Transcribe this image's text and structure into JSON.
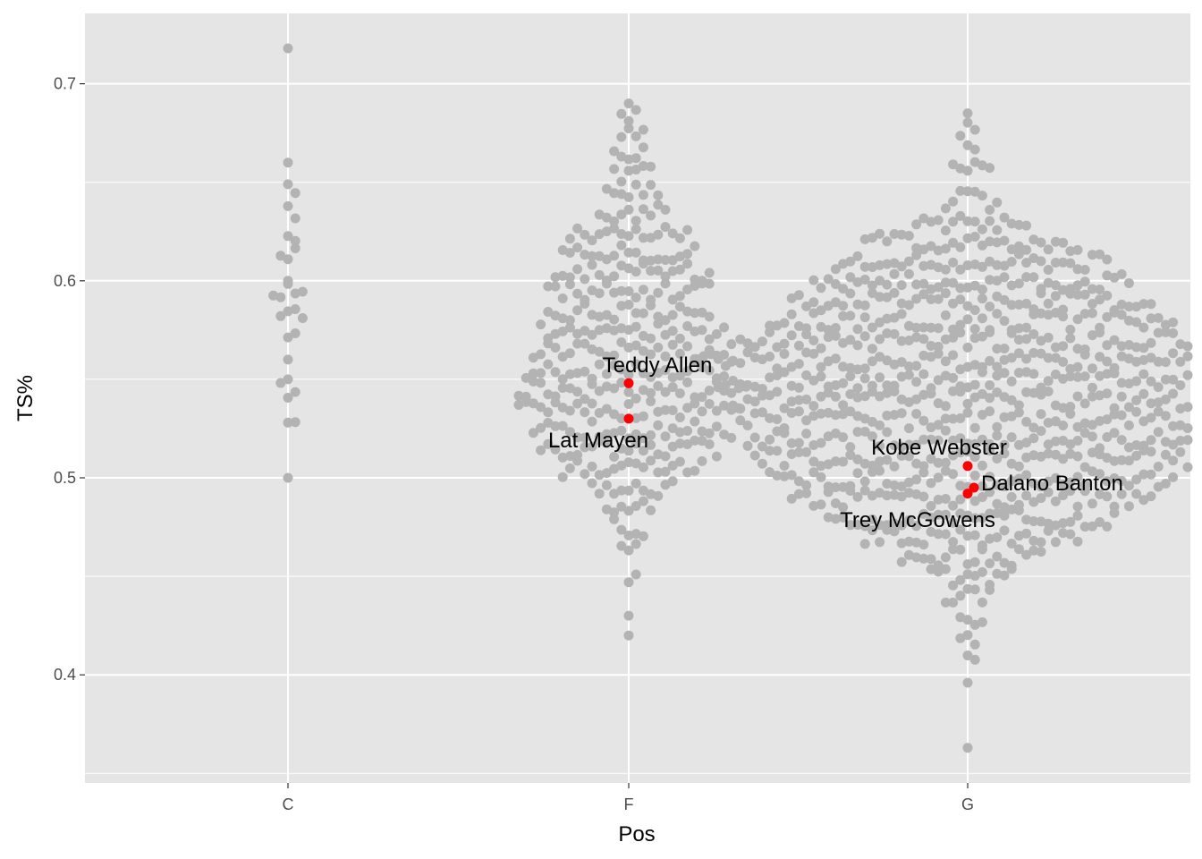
{
  "chart_data": {
    "type": "scatter",
    "subtype": "beeswarm",
    "title": "",
    "xlabel": "Pos",
    "ylabel": "TS%",
    "categories": [
      "C",
      "F",
      "G"
    ],
    "ylim": [
      0.35,
      0.735
    ],
    "y_ticks": [
      0.4,
      0.5,
      0.6,
      0.7
    ],
    "y_tick_labels": [
      "0.4",
      "0.5",
      "0.6",
      "0.7"
    ],
    "grid": true,
    "legend": "none",
    "colors": {
      "panel": "#e5e5e5",
      "grid": "#ffffff",
      "point": "#b3b3b3",
      "highlight": "#ff0000"
    },
    "distributions": [
      {
        "category": "C",
        "approx_n": 28,
        "min": 0.5,
        "max": 0.718,
        "bins": [
          [
            0.5,
            1
          ],
          [
            0.51,
            0
          ],
          [
            0.52,
            2
          ],
          [
            0.53,
            0
          ],
          [
            0.54,
            3
          ],
          [
            0.55,
            1
          ],
          [
            0.56,
            1
          ],
          [
            0.57,
            2
          ],
          [
            0.58,
            4
          ],
          [
            0.59,
            5
          ],
          [
            0.6,
            1
          ],
          [
            0.61,
            3
          ],
          [
            0.62,
            2
          ],
          [
            0.63,
            2
          ],
          [
            0.64,
            2
          ],
          [
            0.66,
            1
          ],
          [
            0.718,
            1
          ]
        ]
      },
      {
        "category": "F",
        "approx_n": 320,
        "min": 0.422,
        "max": 0.691,
        "bins": [
          [
            0.42,
            1
          ],
          [
            0.43,
            1
          ],
          [
            0.445,
            2
          ],
          [
            0.46,
            3
          ],
          [
            0.47,
            5
          ],
          [
            0.48,
            7
          ],
          [
            0.49,
            12
          ],
          [
            0.5,
            20
          ],
          [
            0.51,
            25
          ],
          [
            0.52,
            28
          ],
          [
            0.53,
            31
          ],
          [
            0.54,
            32
          ],
          [
            0.55,
            29
          ],
          [
            0.56,
            28
          ],
          [
            0.57,
            26
          ],
          [
            0.58,
            23
          ],
          [
            0.59,
            23
          ],
          [
            0.6,
            22
          ],
          [
            0.61,
            19
          ],
          [
            0.62,
            17
          ],
          [
            0.63,
            10
          ],
          [
            0.64,
            8
          ],
          [
            0.65,
            6
          ],
          [
            0.66,
            5
          ],
          [
            0.67,
            4
          ],
          [
            0.68,
            3
          ],
          [
            0.69,
            1
          ]
        ]
      },
      {
        "category": "G",
        "approx_n": 1150,
        "min": 0.363,
        "max": 0.687,
        "bins": [
          [
            0.363,
            1
          ],
          [
            0.396,
            1
          ],
          [
            0.405,
            2
          ],
          [
            0.415,
            3
          ],
          [
            0.425,
            4
          ],
          [
            0.435,
            7
          ],
          [
            0.445,
            12
          ],
          [
            0.455,
            20
          ],
          [
            0.465,
            30
          ],
          [
            0.475,
            40
          ],
          [
            0.485,
            50
          ],
          [
            0.495,
            56
          ],
          [
            0.505,
            60
          ],
          [
            0.515,
            62
          ],
          [
            0.525,
            64
          ],
          [
            0.535,
            66
          ],
          [
            0.545,
            70
          ],
          [
            0.555,
            76
          ],
          [
            0.565,
            64
          ],
          [
            0.575,
            56
          ],
          [
            0.585,
            50
          ],
          [
            0.595,
            44
          ],
          [
            0.605,
            38
          ],
          [
            0.615,
            30
          ],
          [
            0.625,
            16
          ],
          [
            0.635,
            8
          ],
          [
            0.655,
            6
          ],
          [
            0.665,
            3
          ],
          [
            0.675,
            2
          ],
          [
            0.685,
            1
          ]
        ]
      }
    ],
    "highlighted": [
      {
        "name": "Teddy Allen",
        "pos": "F",
        "ts": 0.548,
        "label_position": "above-right"
      },
      {
        "name": "Lat Mayen",
        "pos": "F",
        "ts": 0.53,
        "label_position": "below-left"
      },
      {
        "name": "Kobe Webster",
        "pos": "G",
        "ts": 0.506,
        "label_position": "above-left"
      },
      {
        "name": "Dalano Banton",
        "pos": "G",
        "ts": 0.495,
        "label_position": "right"
      },
      {
        "name": "Trey McGowens",
        "pos": "G",
        "ts": 0.492,
        "label_position": "below-left"
      }
    ]
  }
}
